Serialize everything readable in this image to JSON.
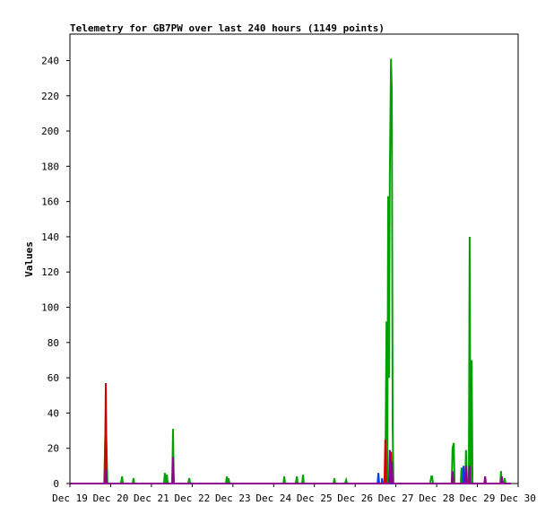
{
  "chart_data": {
    "type": "line",
    "title": "Telemetry for GB7PW over last 240 hours (1149 points)",
    "y_label": "Values",
    "xlim": [
      0,
      11
    ],
    "ylim": [
      0,
      255
    ],
    "xticks": [
      {
        "value": 0,
        "label": "Dec 19"
      },
      {
        "value": 1,
        "label": "Dec 20"
      },
      {
        "value": 2,
        "label": "Dec 21"
      },
      {
        "value": 3,
        "label": "Dec 22"
      },
      {
        "value": 4,
        "label": "Dec 23"
      },
      {
        "value": 5,
        "label": "Dec 24"
      },
      {
        "value": 6,
        "label": "Dec 25"
      },
      {
        "value": 7,
        "label": "Dec 26"
      },
      {
        "value": 8,
        "label": "Dec 27"
      },
      {
        "value": 9,
        "label": "Dec 28"
      },
      {
        "value": 10,
        "label": "Dec 29"
      },
      {
        "value": 11,
        "label": "Dec 30"
      }
    ],
    "yticks": [
      0,
      20,
      40,
      60,
      80,
      100,
      120,
      140,
      160,
      180,
      200,
      220,
      240
    ],
    "series": [
      {
        "color": "#00a000",
        "x": [
          0,
          0.84,
          0.88,
          0.92,
          1.25,
          1.28,
          1.3,
          1.54,
          1.56,
          1.58,
          2.31,
          2.33,
          2.35,
          2.38,
          2.4,
          2.51,
          2.53,
          2.55,
          2.9,
          2.93,
          2.95,
          3.83,
          3.85,
          3.87,
          3.89,
          3.92,
          5.24,
          5.26,
          5.28,
          5.54,
          5.57,
          5.59,
          5.7,
          5.72,
          5.74,
          6.47,
          6.49,
          6.51,
          6.75,
          6.78,
          6.8,
          7.74,
          7.77,
          7.79,
          7.81,
          7.83,
          7.85,
          7.88,
          7.9,
          7.92,
          7.94,
          8.84,
          8.87,
          8.89,
          8.91,
          9.37,
          9.39,
          9.42,
          9.44,
          9.59,
          9.61,
          9.64,
          9.7,
          9.72,
          9.75,
          9.79,
          9.81,
          9.83,
          9.86,
          9.88,
          10.56,
          10.58,
          10.6,
          10.65,
          10.67,
          10.69,
          10.82
        ],
        "values": [
          0,
          0,
          39,
          0,
          0,
          4,
          0,
          0,
          3,
          0,
          0,
          6,
          0,
          5,
          0,
          0,
          31,
          0,
          0,
          3,
          0,
          0,
          4,
          0,
          3,
          0,
          0,
          4,
          0,
          0,
          4,
          0,
          0,
          5,
          0,
          0,
          3,
          0,
          0,
          2,
          0,
          0,
          92,
          0,
          163,
          60,
          173,
          241,
          222,
          33,
          0,
          0,
          4,
          4,
          0,
          0,
          20,
          23,
          0,
          0,
          9,
          0,
          0,
          19,
          0,
          0,
          140,
          0,
          70,
          0,
          0,
          7,
          0,
          0,
          3,
          0,
          0
        ]
      },
      {
        "color": "#d00000",
        "x": [
          0,
          0.86,
          0.88,
          0.9,
          7.72,
          7.74,
          7.76,
          7.86,
          7.88,
          7.9,
          10.82
        ],
        "values": [
          0,
          0,
          57,
          0,
          0,
          25,
          0,
          0,
          18,
          0,
          0
        ]
      },
      {
        "color": "#0040ff",
        "x": [
          0,
          7.55,
          7.57,
          7.59,
          7.65,
          7.66,
          7.68,
          9.64,
          9.66,
          9.68,
          10.82
        ],
        "values": [
          0,
          0,
          6,
          0,
          0,
          3,
          0,
          0,
          10,
          0,
          0
        ]
      },
      {
        "color": "#900090",
        "x": [
          0,
          0.86,
          0.88,
          0.9,
          2.51,
          2.53,
          2.55,
          7.83,
          7.85,
          7.88,
          7.9,
          7.92,
          9.37,
          9.39,
          9.41,
          9.7,
          9.72,
          9.74,
          9.79,
          9.81,
          9.83,
          10.17,
          10.19,
          10.21,
          10.58,
          10.6,
          10.62,
          10.82
        ],
        "values": [
          0,
          0,
          8,
          0,
          0,
          15,
          0,
          0,
          19,
          0,
          12,
          0,
          0,
          7,
          0,
          0,
          10,
          0,
          0,
          10,
          0,
          0,
          4,
          0,
          0,
          4,
          0,
          0
        ]
      }
    ]
  }
}
